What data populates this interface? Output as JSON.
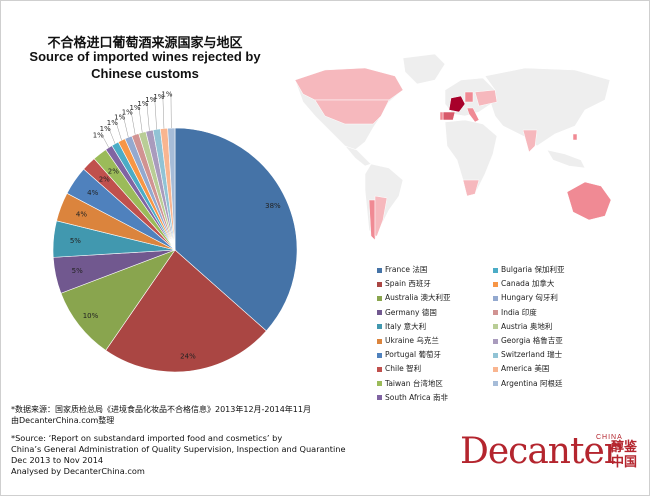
{
  "title_cn": "不合格进口葡萄酒来源国家与地区",
  "title_en_line1": "Source of imported wines rejected by",
  "title_en_line2": "Chinese customs",
  "chart_data": {
    "type": "pie",
    "title": "Source of imported wines rejected by Chinese customs",
    "categories": [
      "France 法国",
      "Spain 西班牙",
      "Australia 澳大利亚",
      "Germany 德国",
      "Italy 意大利",
      "Ukraine 乌克兰",
      "Portugal 葡萄牙",
      "Chile 智利",
      "Taiwan 台湾地区",
      "South Africa 南非",
      "Bulgaria 保加利亚",
      "Canada 加拿大",
      "Hungary 匈牙利",
      "India 印度",
      "Austria 奥地利",
      "Georgia 格鲁吉亚",
      "Switzerland 瑞士",
      "America 美国",
      "Argentina 阿根廷"
    ],
    "values": [
      38,
      24,
      10,
      5,
      5,
      4,
      4,
      2,
      2,
      1,
      1,
      1,
      1,
      1,
      1,
      1,
      1,
      1,
      1
    ],
    "labels": [
      "38%",
      "24%",
      "10%",
      "5%",
      "5%",
      "4%",
      "4%",
      "2%",
      "2%",
      "1%",
      "1%",
      "1%",
      "1%",
      "1%",
      "1%",
      "1%",
      "1%",
      "1%",
      "1%"
    ],
    "colors": [
      "#4573a7",
      "#aa4643",
      "#89a54e",
      "#71588f",
      "#4198af",
      "#db843d",
      "#4f81bd",
      "#c0504d",
      "#9bbb59",
      "#8064a2",
      "#4bacc6",
      "#f79646",
      "#93a9cf",
      "#d19392",
      "#b9cd96",
      "#a99bbd",
      "#91c3d5",
      "#f9b590",
      "#a6bcd8"
    ],
    "legend_position": "right"
  },
  "source_cn_line1": "*数据来源：国家质检总局《进境食品化妆品不合格信息》2013年12月-2014年11月",
  "source_cn_line2": "由DecanterChina.com整理",
  "source_en_line1": "*Source:  ‘Report on substandard imported food and cosmetics’ by",
  "source_en_line2": "China’s General Administration of Quality Supervision, Inspection and Quarantine",
  "source_en_line3": "Dec 2013 to Nov 2014",
  "source_en_line4": "Analysed by DecanterChina.com",
  "logo": {
    "word": "Decanter",
    "china": "CHINA",
    "cn": "醇鉴中国"
  },
  "map_colors": {
    "base": "#eeeeee",
    "france": "#a8002a",
    "spain": "#d85a6a",
    "mid": "#f08a94",
    "light": "#f6b8bd"
  }
}
